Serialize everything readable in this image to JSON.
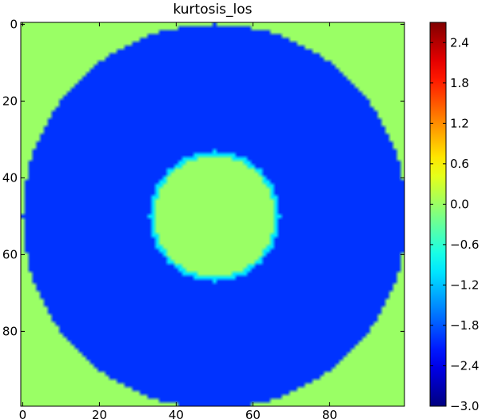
{
  "chart_data": {
    "type": "heatmap",
    "title": "kurtosis_los",
    "xlabel": "",
    "ylabel": "",
    "x_range": [
      -0.5,
      99.5
    ],
    "y_range": [
      -0.5,
      99.5
    ],
    "y_inverted": true,
    "x_ticks": [
      "0",
      "20",
      "40",
      "60",
      "80"
    ],
    "x_tick_values": [
      0,
      20,
      40,
      60,
      80
    ],
    "y_ticks": [
      "0",
      "20",
      "40",
      "60",
      "80"
    ],
    "y_tick_values": [
      0,
      20,
      40,
      60,
      80
    ],
    "colormap": "jet",
    "color_range": [
      -3.0,
      2.7
    ],
    "colorbar_ticks": [
      "2.4",
      "1.8",
      "1.2",
      "0.6",
      "0.0",
      "−0.6",
      "−1.2",
      "−1.8",
      "−2.4",
      "−3.0"
    ],
    "colorbar_tick_values": [
      2.4,
      1.8,
      1.2,
      0.6,
      0.0,
      -0.6,
      -1.2,
      -1.8,
      -2.4,
      -3.0
    ],
    "field": {
      "shape": "concentric annulus",
      "center": [
        50,
        50
      ],
      "outer_radius": 50,
      "inner_radius": 17,
      "background_value": 0.0,
      "annulus_value": -2.0,
      "inner_disk_value": 0.0,
      "inner_edge_value": -1.0
    }
  },
  "colors": {
    "background_green": "#8aec5e",
    "annulus_blue": "#0a4cf0",
    "inner_ring_cyan": "#2fe0d8"
  }
}
